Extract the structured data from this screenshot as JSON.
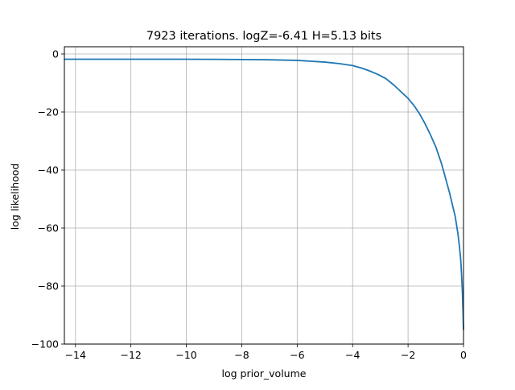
{
  "chart_data": {
    "type": "line",
    "title": "7923 iterations. logZ=-6.41 H=5.13 bits",
    "xlabel": "log prior_volume",
    "ylabel": "log likelihood",
    "xlim": [
      -14.4,
      0
    ],
    "ylim": [
      -100,
      2.5
    ],
    "xticks": [
      -14,
      -12,
      -10,
      -8,
      -6,
      -4,
      -2,
      0
    ],
    "xtick_labels": [
      "−14",
      "−12",
      "−10",
      "−8",
      "−6",
      "−4",
      "−2",
      "0"
    ],
    "yticks": [
      0,
      -20,
      -40,
      -60,
      -80,
      -100
    ],
    "ytick_labels": [
      "0",
      "−20",
      "−40",
      "−60",
      "−80",
      "−100"
    ],
    "grid": true,
    "line_color": "#1f77b4",
    "series": [
      {
        "x": [
          -14.4,
          -14.0,
          -13.0,
          -12.0,
          -11.0,
          -10.0,
          -9.0,
          -8.0,
          -7.0,
          -6.5,
          -6.0,
          -5.5,
          -5.0,
          -4.5,
          -4.0,
          -3.7,
          -3.4,
          -3.1,
          -2.8,
          -2.5,
          -2.2,
          -2.0,
          -1.8,
          -1.6,
          -1.4,
          -1.2,
          -1.0,
          -0.9,
          -0.8,
          -0.7,
          -0.6,
          -0.5,
          -0.4,
          -0.3,
          -0.2,
          -0.15,
          -0.1,
          -0.07,
          -0.04,
          -0.02,
          0.0
        ],
        "y": [
          -1.8,
          -1.8,
          -1.8,
          -1.8,
          -1.8,
          -1.8,
          -1.85,
          -1.9,
          -2.0,
          -2.1,
          -2.2,
          -2.5,
          -2.8,
          -3.3,
          -4.0,
          -4.8,
          -5.8,
          -7.0,
          -8.5,
          -10.8,
          -13.5,
          -15.3,
          -17.6,
          -20.4,
          -23.8,
          -27.7,
          -32.0,
          -34.8,
          -37.6,
          -41.0,
          -44.5,
          -48.0,
          -52.0,
          -56.0,
          -62.0,
          -66.0,
          -71.0,
          -76.0,
          -82.0,
          -88.0,
          -95.0
        ]
      }
    ]
  }
}
